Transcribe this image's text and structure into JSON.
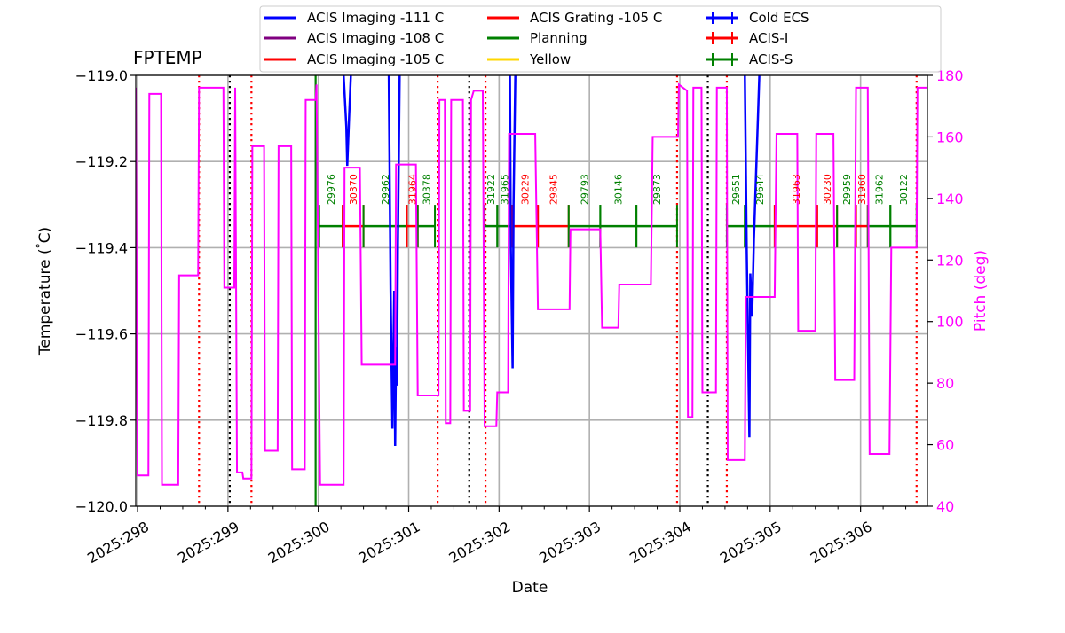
{
  "chart_data": {
    "type": "line",
    "title": "FPTEMP",
    "xlabel": "Date",
    "ylabel": "Temperature ($^\\circ$C)",
    "y2label": "Pitch (deg)",
    "xlim": [
      297.98,
      306.74
    ],
    "ylim": [
      -120.0,
      -119.0
    ],
    "y2lim": [
      40,
      180
    ],
    "grid": true,
    "legend_position": "top-center, above plot",
    "colors": {
      "imaging111": "#0000ff",
      "imaging108": "#800080",
      "imaging105": "#ff0000",
      "grating105": "#ff0000",
      "planning": "#008000",
      "yellow": "#ffd700",
      "cold_ecs": "#0000ff",
      "acis_i": "#ff0000",
      "acis_s": "#008000",
      "pitch": "#ff00ff",
      "black_vline": "#000000"
    },
    "x_ticks": [
      {
        "value": 298,
        "label": "2025:298"
      },
      {
        "value": 299,
        "label": "2025:299"
      },
      {
        "value": 300,
        "label": "2025:300"
      },
      {
        "value": 301,
        "label": "2025:301"
      },
      {
        "value": 302,
        "label": "2025:302"
      },
      {
        "value": 303,
        "label": "2025:303"
      },
      {
        "value": 304,
        "label": "2025:304"
      },
      {
        "value": 305,
        "label": "2025:305"
      },
      {
        "value": 306,
        "label": "2025:306"
      }
    ],
    "y_ticks": [
      {
        "value": -119.0,
        "label": "−119.0"
      },
      {
        "value": -119.2,
        "label": "−119.2"
      },
      {
        "value": -119.4,
        "label": "−119.4"
      },
      {
        "value": -119.6,
        "label": "−119.6"
      },
      {
        "value": -119.8,
        "label": "−119.8"
      },
      {
        "value": -120.0,
        "label": "−120.0"
      }
    ],
    "y2_ticks": [
      {
        "value": 40,
        "label": "40"
      },
      {
        "value": 60,
        "label": "60"
      },
      {
        "value": 80,
        "label": "80"
      },
      {
        "value": 100,
        "label": "100"
      },
      {
        "value": 120,
        "label": "120"
      },
      {
        "value": 140,
        "label": "140"
      },
      {
        "value": 160,
        "label": "160"
      },
      {
        "value": 180,
        "label": "180"
      }
    ],
    "legend": [
      {
        "label": "ACIS Imaging -111 C",
        "color": "#0000ff",
        "marker": "line"
      },
      {
        "label": "ACIS Imaging -108 C",
        "color": "#800080",
        "marker": "line"
      },
      {
        "label": "ACIS Imaging -105 C",
        "color": "#ff0000",
        "marker": "line"
      },
      {
        "label": "ACIS Grating -105 C",
        "color": "#ff0000",
        "marker": "line"
      },
      {
        "label": "Planning",
        "color": "#008000",
        "marker": "line"
      },
      {
        "label": "Yellow",
        "color": "#ffd700",
        "marker": "line"
      },
      {
        "label": "Cold ECS",
        "color": "#0000ff",
        "marker": "cross"
      },
      {
        "label": "ACIS-I",
        "color": "#ff0000",
        "marker": "cross"
      },
      {
        "label": "ACIS-S",
        "color": "#008000",
        "marker": "cross"
      }
    ],
    "series": [
      {
        "name": "ACIS Imaging -111 C",
        "color": "#0000ff",
        "segments": [
          [
            [
              300.28,
              -119.0
            ],
            [
              300.31,
              -119.12
            ],
            [
              300.32,
              -119.21
            ],
            [
              300.34,
              -119.1
            ],
            [
              300.36,
              -119.0
            ]
          ],
          [
            [
              300.78,
              -119.0
            ],
            [
              300.8,
              -119.5
            ],
            [
              300.82,
              -119.82
            ],
            [
              300.84,
              -119.5
            ],
            [
              300.85,
              -119.86
            ],
            [
              300.86,
              -119.63
            ],
            [
              300.87,
              -119.72
            ],
            [
              300.88,
              -119.4
            ],
            [
              300.9,
              -119.0
            ]
          ],
          [
            [
              302.12,
              -119.0
            ],
            [
              302.13,
              -119.4
            ],
            [
              302.15,
              -119.68
            ],
            [
              302.16,
              -119.3
            ],
            [
              302.18,
              -119.0
            ]
          ],
          [
            [
              304.72,
              -119.0
            ],
            [
              304.74,
              -119.4
            ],
            [
              304.77,
              -119.84
            ],
            [
              304.78,
              -119.46
            ],
            [
              304.8,
              -119.56
            ],
            [
              304.82,
              -119.38
            ],
            [
              304.88,
              -119.0
            ]
          ]
        ]
      },
      {
        "name": "Pitch",
        "axis": "right",
        "color": "#ff00ff",
        "points": [
          [
            297.98,
            176
          ],
          [
            298.0,
            50
          ],
          [
            298.12,
            50
          ],
          [
            298.13,
            174
          ],
          [
            298.26,
            174
          ],
          [
            298.27,
            47
          ],
          [
            298.45,
            47
          ],
          [
            298.46,
            115
          ],
          [
            298.67,
            115
          ],
          [
            298.68,
            176
          ],
          [
            298.95,
            176
          ],
          [
            298.96,
            111
          ],
          [
            299.07,
            111
          ],
          [
            299.08,
            176
          ],
          [
            299.1,
            51
          ],
          [
            299.16,
            51
          ],
          [
            299.17,
            49
          ],
          [
            299.26,
            49
          ],
          [
            299.27,
            157
          ],
          [
            299.4,
            157
          ],
          [
            299.41,
            58
          ],
          [
            299.55,
            58
          ],
          [
            299.56,
            157
          ],
          [
            299.7,
            157
          ],
          [
            299.71,
            52
          ],
          [
            299.85,
            52
          ],
          [
            299.86,
            172
          ],
          [
            299.97,
            172
          ],
          [
            299.98,
            177
          ],
          [
            300.02,
            47
          ],
          [
            300.28,
            47
          ],
          [
            300.29,
            150
          ],
          [
            300.46,
            150
          ],
          [
            300.48,
            86
          ],
          [
            300.85,
            86
          ],
          [
            300.86,
            151
          ],
          [
            301.08,
            151
          ],
          [
            301.1,
            76
          ],
          [
            301.33,
            76
          ],
          [
            301.34,
            172
          ],
          [
            301.4,
            172
          ],
          [
            301.41,
            67
          ],
          [
            301.46,
            67
          ],
          [
            301.47,
            172
          ],
          [
            301.6,
            172
          ],
          [
            301.61,
            71
          ],
          [
            301.68,
            71
          ],
          [
            301.69,
            172
          ],
          [
            301.72,
            175
          ],
          [
            301.82,
            175
          ],
          [
            301.84,
            66
          ],
          [
            301.97,
            66
          ],
          [
            301.98,
            77
          ],
          [
            302.1,
            77
          ],
          [
            302.11,
            161
          ],
          [
            302.4,
            161
          ],
          [
            302.43,
            104
          ],
          [
            302.78,
            104
          ],
          [
            302.79,
            130
          ],
          [
            303.12,
            130
          ],
          [
            303.14,
            98
          ],
          [
            303.32,
            98
          ],
          [
            303.33,
            112
          ],
          [
            303.68,
            112
          ],
          [
            303.7,
            160
          ],
          [
            303.98,
            160
          ],
          [
            303.99,
            177
          ],
          [
            304.08,
            175
          ],
          [
            304.09,
            69
          ],
          [
            304.14,
            69
          ],
          [
            304.15,
            176
          ],
          [
            304.24,
            176
          ],
          [
            304.25,
            77
          ],
          [
            304.4,
            77
          ],
          [
            304.41,
            176
          ],
          [
            304.52,
            176
          ],
          [
            304.53,
            55
          ],
          [
            304.72,
            55
          ],
          [
            304.73,
            108
          ],
          [
            305.05,
            108
          ],
          [
            305.07,
            161
          ],
          [
            305.3,
            161
          ],
          [
            305.31,
            97
          ],
          [
            305.5,
            97
          ],
          [
            305.51,
            161
          ],
          [
            305.7,
            161
          ],
          [
            305.72,
            81
          ],
          [
            305.93,
            81
          ],
          [
            305.95,
            176
          ],
          [
            306.08,
            176
          ],
          [
            306.1,
            57
          ],
          [
            306.32,
            57
          ],
          [
            306.34,
            124
          ],
          [
            306.62,
            124
          ],
          [
            306.63,
            176
          ],
          [
            306.74,
            176
          ]
        ]
      }
    ],
    "vlines": [
      {
        "x": 298.68,
        "color": "#ff0000",
        "style": "dotted"
      },
      {
        "x": 299.02,
        "color": "#000000",
        "style": "dotted"
      },
      {
        "x": 299.26,
        "color": "#ff0000",
        "style": "dotted"
      },
      {
        "x": 299.97,
        "color": "#008000",
        "style": "solid"
      },
      {
        "x": 301.32,
        "color": "#ff0000",
        "style": "dotted"
      },
      {
        "x": 301.67,
        "color": "#000000",
        "style": "dotted"
      },
      {
        "x": 301.85,
        "color": "#ff0000",
        "style": "dotted"
      },
      {
        "x": 303.97,
        "color": "#ff0000",
        "style": "dotted"
      },
      {
        "x": 304.31,
        "color": "#000000",
        "style": "dotted"
      },
      {
        "x": 304.52,
        "color": "#ff0000",
        "style": "dotted"
      },
      {
        "x": 306.62,
        "color": "#ff0000",
        "style": "dotted"
      }
    ],
    "obsids_level": -119.35,
    "obsids": [
      {
        "label": "29976",
        "start": 300.01,
        "end": 300.27,
        "color": "#008000"
      },
      {
        "label": "30370",
        "start": 300.27,
        "end": 300.5,
        "color": "#ff0000"
      },
      {
        "label": "29962",
        "start": 300.5,
        "end": 300.98,
        "color": "#008000"
      },
      {
        "label": "31964",
        "start": 300.98,
        "end": 301.1,
        "color": "#ff0000"
      },
      {
        "label": "30378",
        "start": 301.1,
        "end": 301.29,
        "color": "#008000"
      },
      {
        "label": "31922",
        "start": 301.84,
        "end": 301.98,
        "color": "#008000"
      },
      {
        "label": "31965",
        "start": 301.98,
        "end": 302.14,
        "color": "#008000"
      },
      {
        "label": "30229",
        "start": 302.14,
        "end": 302.43,
        "color": "#ff0000"
      },
      {
        "label": "29845",
        "start": 302.43,
        "end": 302.77,
        "color": "#ff0000"
      },
      {
        "label": "29793",
        "start": 302.77,
        "end": 303.12,
        "color": "#008000"
      },
      {
        "label": "30146",
        "start": 303.12,
        "end": 303.52,
        "color": "#008000"
      },
      {
        "label": "29873",
        "start": 303.52,
        "end": 303.97,
        "color": "#008000"
      },
      {
        "label": "29651",
        "start": 304.52,
        "end": 304.72,
        "color": "#008000"
      },
      {
        "label": "29644",
        "start": 304.72,
        "end": 305.05,
        "color": "#008000"
      },
      {
        "label": "31963",
        "start": 305.05,
        "end": 305.52,
        "color": "#ff0000"
      },
      {
        "label": "30230",
        "start": 305.52,
        "end": 305.74,
        "color": "#ff0000"
      },
      {
        "label": "29959",
        "start": 305.74,
        "end": 305.95,
        "color": "#008000"
      },
      {
        "label": "31960",
        "start": 305.95,
        "end": 306.08,
        "color": "#ff0000"
      },
      {
        "label": "31962",
        "start": 306.08,
        "end": 306.33,
        "color": "#008000"
      },
      {
        "label": "30122",
        "start": 306.33,
        "end": 306.62,
        "color": "#008000"
      }
    ]
  }
}
